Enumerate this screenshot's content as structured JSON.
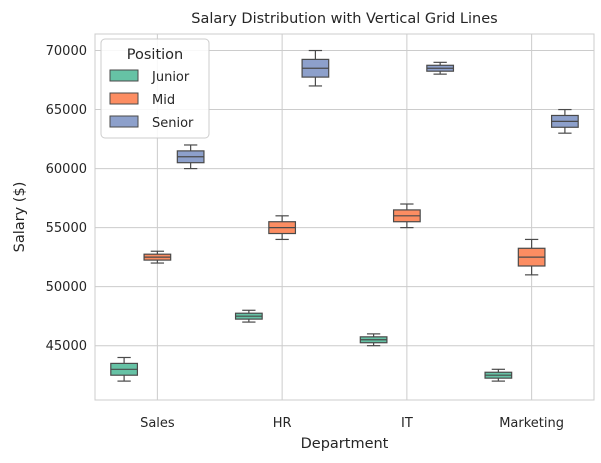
{
  "chart_data": {
    "type": "box",
    "title": "Salary Distribution with Vertical Grid Lines",
    "xlabel": "Department",
    "ylabel": "Salary ($)",
    "categories": [
      "Sales",
      "HR",
      "IT",
      "Marketing"
    ],
    "ylim": [
      40400,
      71400
    ],
    "yticks": [
      45000,
      50000,
      55000,
      60000,
      65000,
      70000
    ],
    "ytick_labels": [
      "45000",
      "50000",
      "55000",
      "60000",
      "65000",
      "70000"
    ],
    "grid": "both",
    "legend": {
      "title": "Position",
      "placement": "top-left"
    },
    "series": [
      {
        "name": "Junior",
        "color": "#66c2a5",
        "boxes": [
          {
            "category": "Sales",
            "min": 42000,
            "q1": 42500,
            "median": 43000,
            "q3": 43500,
            "max": 44000
          },
          {
            "category": "HR",
            "min": 47000,
            "q1": 47250,
            "median": 47500,
            "q3": 47750,
            "max": 48000
          },
          {
            "category": "IT",
            "min": 45000,
            "q1": 45250,
            "median": 45500,
            "q3": 45750,
            "max": 46000
          },
          {
            "category": "Marketing",
            "min": 42000,
            "q1": 42250,
            "median": 42500,
            "q3": 42750,
            "max": 43000
          }
        ]
      },
      {
        "name": "Mid",
        "color": "#fc8d62",
        "boxes": [
          {
            "category": "Sales",
            "min": 52000,
            "q1": 52250,
            "median": 52500,
            "q3": 52750,
            "max": 53000
          },
          {
            "category": "HR",
            "min": 54000,
            "q1": 54500,
            "median": 55000,
            "q3": 55500,
            "max": 56000
          },
          {
            "category": "IT",
            "min": 55000,
            "q1": 55500,
            "median": 56000,
            "q3": 56500,
            "max": 57000
          },
          {
            "category": "Marketing",
            "min": 51000,
            "q1": 51750,
            "median": 52500,
            "q3": 53250,
            "max": 54000
          }
        ]
      },
      {
        "name": "Senior",
        "color": "#8da0cb",
        "boxes": [
          {
            "category": "Sales",
            "min": 60000,
            "q1": 60500,
            "median": 61000,
            "q3": 61500,
            "max": 62000
          },
          {
            "category": "HR",
            "min": 67000,
            "q1": 67750,
            "median": 68500,
            "q3": 69250,
            "max": 70000
          },
          {
            "category": "IT",
            "min": 68000,
            "q1": 68250,
            "median": 68500,
            "q3": 68750,
            "max": 69000
          },
          {
            "category": "Marketing",
            "min": 63000,
            "q1": 63500,
            "median": 64000,
            "q3": 64500,
            "max": 65000
          }
        ]
      }
    ]
  }
}
